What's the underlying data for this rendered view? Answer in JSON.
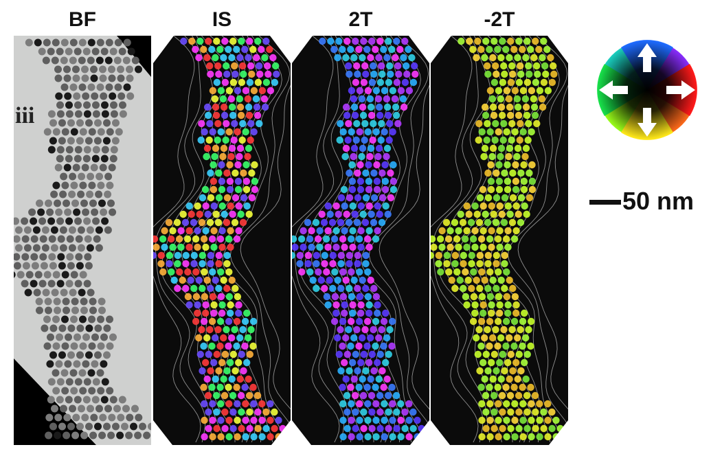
{
  "panels": [
    {
      "id": "bf",
      "label": "BF",
      "kind": "brightfield"
    },
    {
      "id": "is",
      "label": "IS",
      "kind": "phase",
      "palette": [
        "#ff3a3a",
        "#f4ff3a",
        "#3aff6a",
        "#3acfff",
        "#6a4bff",
        "#ff3aff",
        "#ffb03a"
      ]
    },
    {
      "id": "t2",
      "label": "2T",
      "kind": "phase",
      "palette": [
        "#3a7bff",
        "#5a3aff",
        "#30d0e8",
        "#b03aff",
        "#ff3aff",
        "#2ab0ff"
      ]
    },
    {
      "id": "mt2",
      "label": "-2T",
      "kind": "phase",
      "palette": [
        "#c8ff2a",
        "#e8f22a",
        "#7be83a",
        "#ffd83a",
        "#a8ff3a",
        "#f2c02a"
      ]
    }
  ],
  "side_label": "iii",
  "scale_bar": {
    "text": "50 nm"
  },
  "color_wheel": {
    "arrows": [
      "up",
      "down",
      "left",
      "right"
    ],
    "colors": {
      "up": "#1e6bff",
      "right": "#ff1a1a",
      "down": "#ffe81a",
      "left": "#18e04a"
    }
  }
}
